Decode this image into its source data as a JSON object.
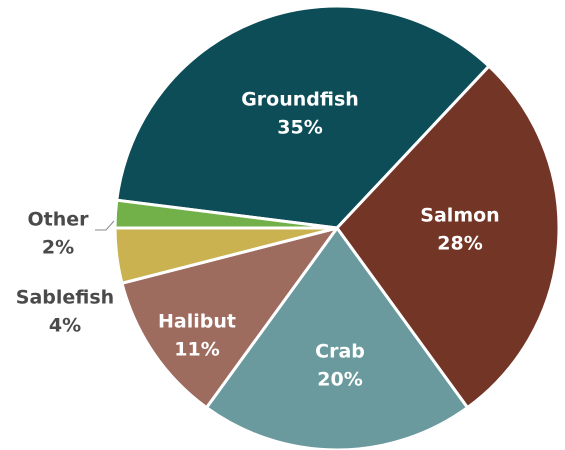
{
  "chart_data": {
    "type": "pie",
    "categories": [
      "Groundfish",
      "Salmon",
      "Crab",
      "Halibut",
      "Sablefish",
      "Other"
    ],
    "values": [
      35,
      28,
      20,
      11,
      4,
      2
    ],
    "value_labels": [
      "35%",
      "28%",
      "20%",
      "11%",
      "4%",
      "2%"
    ],
    "colors": [
      "#0d4d57",
      "#733526",
      "#6a9a9e",
      "#9e6b5f",
      "#c9b24f",
      "#72b04a"
    ]
  }
}
